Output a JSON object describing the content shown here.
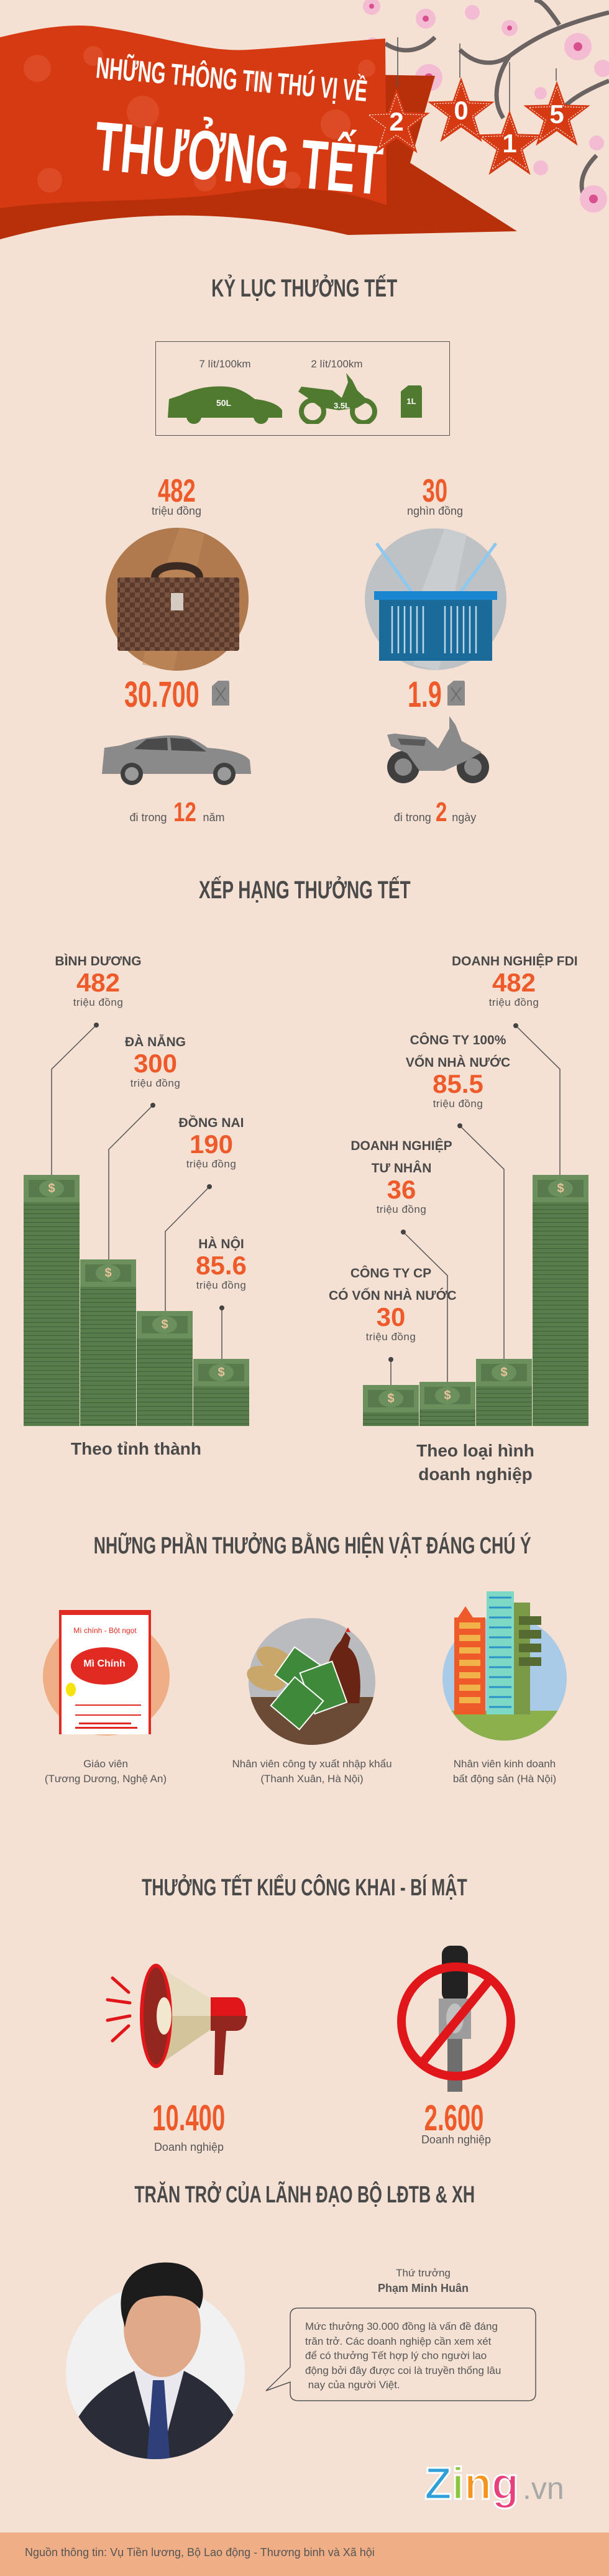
{
  "header": {
    "line1": "NHỮNG THÔNG TIN THÚ VỊ VỀ",
    "line2": "THƯỞNG TẾT",
    "year_digits": [
      "2",
      "0",
      "1",
      "5"
    ]
  },
  "records": {
    "title": "KỶ LỤC THƯỞNG TẾT",
    "fuel_box": {
      "car_rate": "7 lít/100km",
      "bike_rate": "2 lít/100km",
      "car_tank": "50L",
      "bike_tank": "3.5L",
      "can": "1L"
    },
    "left": {
      "amount": "482",
      "unit": "triệu đồng",
      "fuel": "30.700",
      "duration_prefix": "đi trong",
      "duration_value": "12",
      "duration_unit": "năm"
    },
    "right": {
      "amount": "30",
      "unit": "nghìn đồng",
      "fuel": "1.9",
      "duration_prefix": "đi trong",
      "duration_value": "2",
      "duration_unit": "ngày"
    }
  },
  "ranking": {
    "title": "XẾP HẠNG THƯỞNG TẾT",
    "currency_symbol": "$",
    "provinces": {
      "group_label": "Theo tỉnh thành",
      "items": [
        {
          "name": "BÌNH DƯƠNG",
          "value": "482",
          "unit": "triệu đồng"
        },
        {
          "name": "ĐÀ NẴNG",
          "value": "300",
          "unit": "triệu đồng"
        },
        {
          "name": "ĐỒNG NAI",
          "value": "190",
          "unit": "triệu đồng"
        },
        {
          "name": "HÀ NỘI",
          "value": "85.6",
          "unit": "triệu đồng"
        }
      ]
    },
    "enterprises": {
      "group_label_1": "Theo loại hình",
      "group_label_2": "doanh nghiệp",
      "items": [
        {
          "name1": "CÔNG TY CP",
          "name2": "CÓ VỐN NHÀ NƯỚC",
          "value": "30",
          "unit": "triệu đồng"
        },
        {
          "name1": "DOANH NGHIỆP",
          "name2": "TƯ NHÂN",
          "value": "36",
          "unit": "triệu đồng"
        },
        {
          "name1": "CÔNG TY 100%",
          "name2": "VỐN NHÀ NƯỚC",
          "value": "85.5",
          "unit": "triệu đồng"
        },
        {
          "name1": "DOANH NGHIỆP FDI",
          "name2": "",
          "value": "482",
          "unit": "triệu đồng"
        }
      ]
    }
  },
  "gifts": {
    "title": "NHỮNG PHẦN THƯỞNG BẰNG HIỆN VẬT ĐÁNG CHÚ Ý",
    "package_top": "Mì chính - Bột ngọt",
    "package_logo": "Mì Chính",
    "items": [
      {
        "caption1": "Giáo viên",
        "caption2": "(Tương Dương, Nghệ An)"
      },
      {
        "caption1": "Nhân viên công ty xuất nhập khẩu",
        "caption2": "(Thanh Xuân, Hà Nội)"
      },
      {
        "caption1": "Nhân viên kinh doanh",
        "caption2": "bất động sản (Hà Nội)"
      }
    ]
  },
  "public_secret": {
    "title": "THƯỞNG TẾT KIỂU CÔNG KHAI - BÍ MẬT",
    "public": {
      "value": "10.400",
      "label": "Doanh nghiệp"
    },
    "secret": {
      "value": "2.600",
      "label": "Doanh nghiệp"
    }
  },
  "leader": {
    "title": "TRĂN TRỞ CỦA LÃNH ĐẠO BỘ LĐTB & XH",
    "role": "Thứ trưởng",
    "name": "Phạm Minh Huân",
    "quote_lines": [
      "Mức thưởng 30.000 đồng là vấn đề đáng",
      "trăn trở. Các doanh nghiệp cần xem xét",
      "để có thưởng Tết hợp lý cho người lao",
      "động bởi đây được coi là truyền thống lâu",
      " nay của người Việt."
    ]
  },
  "brand": {
    "letters": [
      "Z",
      "i",
      "n",
      "g"
    ],
    "suffix": ".vn",
    "colors": [
      "#2f9fd8",
      "#8cc63f",
      "#f7941d",
      "#e8407a"
    ]
  },
  "footer": {
    "source": "Nguồn thông tin: Vụ Tiền lương, Bộ Lao động - Thương binh và Xã hội"
  },
  "colors": {
    "background": "#f5e1d4",
    "accent": "#ee5a2a",
    "banner": "#d63a12",
    "money": "#597c4d",
    "footer": "#efae86"
  }
}
